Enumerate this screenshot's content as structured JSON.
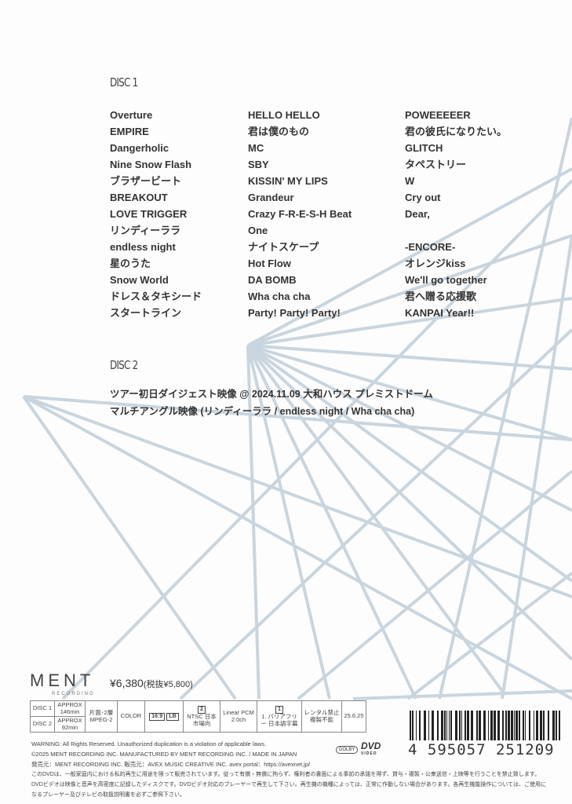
{
  "disc1": {
    "heading": "DISC 1",
    "columns": [
      [
        "Overture",
        "EMPIRE",
        "Dangerholic",
        "Nine Snow Flash",
        "ブラザービート",
        "BREAKOUT",
        "LOVE TRIGGER",
        "リンディーララ",
        "endless night",
        "星のうた",
        "Snow World",
        "ドレス＆タキシード",
        "スタートライン"
      ],
      [
        "HELLO HELLO",
        "君は僕のもの",
        "MC",
        "SBY",
        "KISSIN' MY LIPS",
        "Grandeur",
        "Crazy F-R-E-S-H Beat",
        "One",
        "ナイトスケープ",
        "Hot Flow",
        "DA BOMB",
        "Wha cha cha",
        "Party! Party! Party!"
      ],
      [
        "POWEEEEER",
        "君の彼氏になりたい。",
        "GLITCH",
        "タペストリー",
        "W",
        "Cry out",
        "Dear,",
        "",
        "-ENCORE-",
        "オレンジkiss",
        "We'll go together",
        "君へ贈る応援歌",
        "KANPAI Year!!"
      ]
    ]
  },
  "disc2": {
    "heading": "DISC 2",
    "lines": [
      "ツアー初日ダイジェスト映像 @ 2024.11.09 大和ハウス プレミストドーム",
      "マルチアングル映像 (リンディーララ / endless night / Wha cha cha)"
    ]
  },
  "label": {
    "name": "MENT",
    "sub": "RECORDING"
  },
  "price": {
    "main": "¥6,380",
    "tax": "(税抜¥5,800)"
  },
  "spec": {
    "disc1": "DISC 1",
    "disc1_time": "APPROX 146min",
    "disc2": "DISC 2",
    "disc2_time": "APPROX 92min",
    "layer": "片面･2層 MPEG-2",
    "color": "COLOR",
    "aspect": "16:9",
    "lb": "LB",
    "region": "2",
    "ntsc": "NTSC 日本市場向",
    "audio": "Linear PCM 2.0ch",
    "sub_icon": "1",
    "subtitle": "1. バリアフリー 日本語字幕",
    "rental": "レンタル禁止 複製不能",
    "date": "25.6.25"
  },
  "fine": [
    "WARNING: All Rights Reserved. Unauthorized duplication is a violation of applicable laws.",
    "©2025 MENT RECORDING INC. MANUFACTURED BY MENT RECORDING INC. / MADE IN JAPAN",
    "発売元：MENT RECORDING INC. 販売元：AVEX MUSIC CREATIVE INC. avex portal：https://avexnet.jp/",
    "このDVDは、一般家庭内における私的再生に用途を限って販売されています。従って有償・無償に拘らず、権利者の書面による事前の承諾を得ず、貸与・複製・公衆送信・上映等を行うことを禁止致します。",
    "DVDビデオは映像と音声を高密度に記録したディスクです。DVDビデオ対応のプレーヤーで再生して下さい。再生機の機種によっては、正常に作動しない場合があります。各再生機能操作については、ご使用に",
    "なるプレーヤー及びテレビの取扱説明書を必ずご参照下さい。"
  ],
  "logos": {
    "dvd": "DVD",
    "dvd_sub": "VIDEO",
    "dolby": "DOLBY"
  },
  "barcode": "4 595057 251209",
  "colors": {
    "lines": "#c9d5de",
    "text": "#333333"
  }
}
